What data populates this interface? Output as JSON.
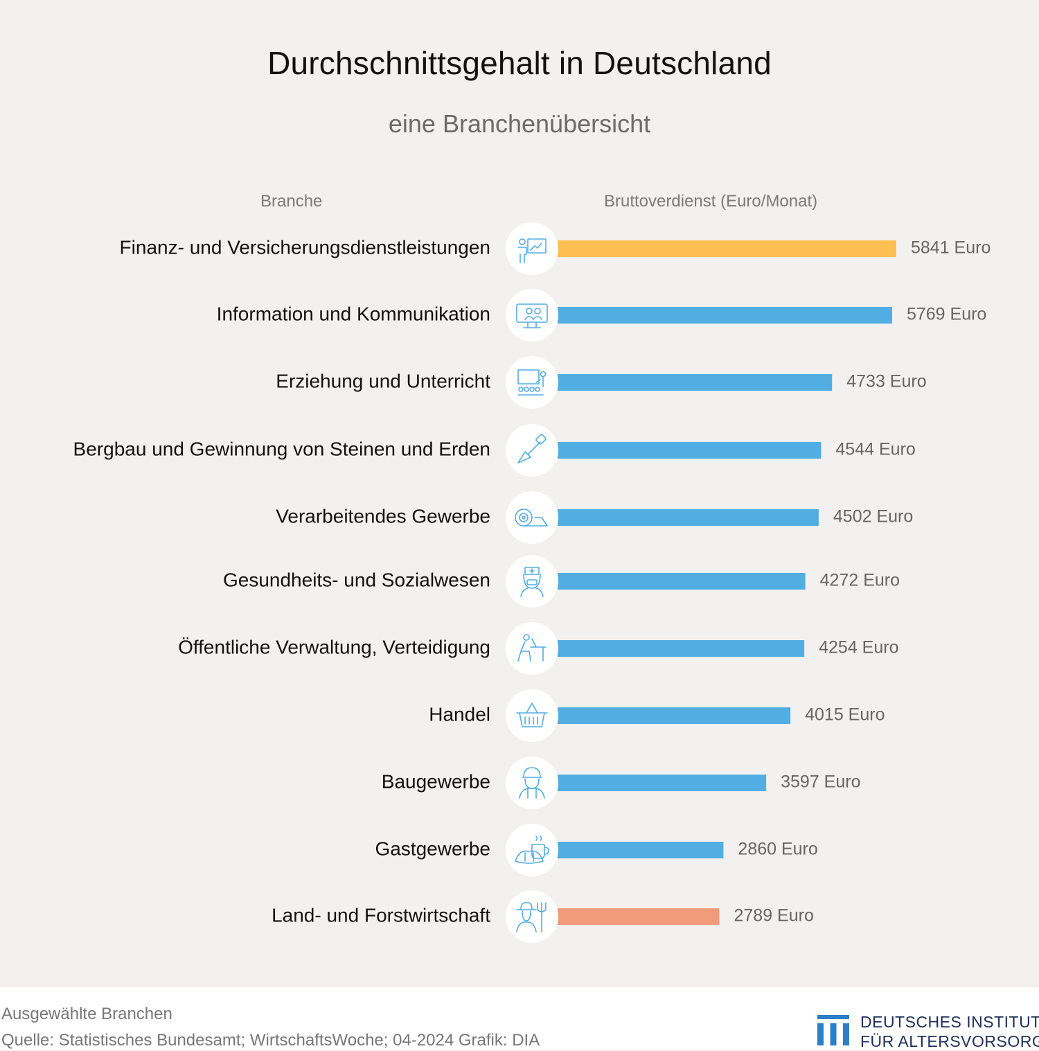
{
  "title": "Durchschnittsgehalt in Deutschland",
  "subtitle": "eine Branchenübersicht",
  "column_headers": {
    "category": "Branche",
    "value": "Bruttoverdienst (Euro/Monat)"
  },
  "value_suffix": "Euro",
  "chart_data": {
    "type": "bar",
    "orientation": "horizontal",
    "categories": [
      "Finanz- und Versicherungsdienstleistungen",
      "Information und Kommunikation",
      "Erziehung und Unterricht",
      "Bergbau und Gewinnung von Steinen und Erden",
      "Verarbeitendes Gewerbe",
      "Gesundheits- und Sozialwesen",
      "Öffentliche Verwaltung, Verteidigung",
      "Handel",
      "Baugewerbe",
      "Gastgewerbe",
      "Land- und Forstwirtschaft"
    ],
    "values": [
      5841,
      5769,
      4733,
      4544,
      4502,
      4272,
      4254,
      4015,
      3597,
      2860,
      2789
    ],
    "value_labels": [
      "5841 Euro",
      "5769 Euro",
      "4733 Euro",
      "4544 Euro",
      "4502 Euro",
      "4272 Euro",
      "4254 Euro",
      "4015 Euro",
      "3597 Euro",
      "2860 Euro",
      "2789 Euro"
    ],
    "bar_colors": [
      "#fdbf52",
      "#52ade3",
      "#52ade3",
      "#52ade3",
      "#52ade3",
      "#52ade3",
      "#52ade3",
      "#52ade3",
      "#52ade3",
      "#52ade3",
      "#f19b7a"
    ],
    "icons": [
      "presentation-chart-icon",
      "video-conference-icon",
      "classroom-icon",
      "shovel-icon",
      "fabric-roll-icon",
      "nurse-icon",
      "office-worker-icon",
      "shopping-basket-icon",
      "construction-worker-icon",
      "coffee-croissant-icon",
      "farmer-icon"
    ],
    "xlim": [
      0,
      5841
    ],
    "grid": false,
    "legend": "none"
  },
  "footer": {
    "note": "Ausgewählte Branchen",
    "source": "Quelle: Statistisches Bundesamt; WirtschaftsWoche; 04-2024  Grafik: DIA",
    "logo_line1": "DEUTSCHES INSTITUT",
    "logo_line2": "FÜR ALTERSVORSORGE",
    "logo_color": "#2d7fc6"
  }
}
